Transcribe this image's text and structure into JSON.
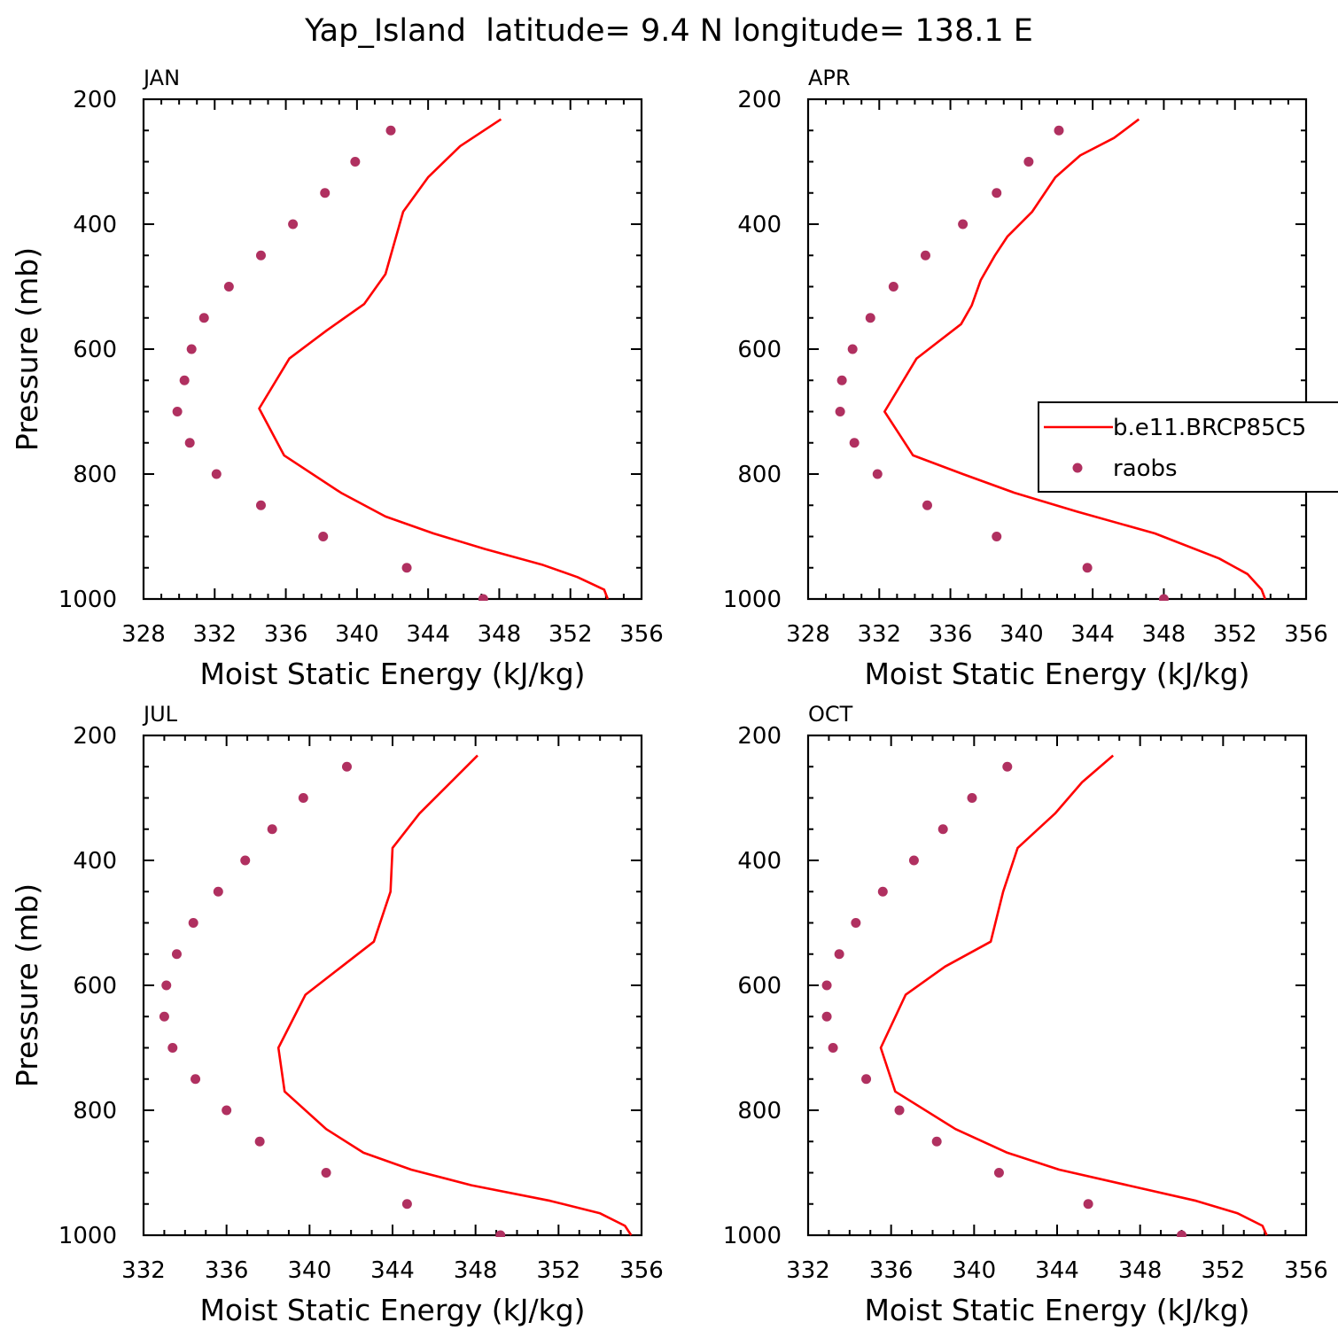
{
  "figure": {
    "title": "Yap_Island  latitude= 9.4 N longitude= 138.1 E"
  },
  "legend": {
    "model_label": "b.e11.BRCP85C5",
    "obs_label": "raobs"
  },
  "colors": {
    "model_line": "#ff0000",
    "obs_marker": "#b03060",
    "axes": "#000000"
  },
  "chart_data": [
    {
      "type": "line",
      "panel_label": "JAN",
      "xlabel": "Moist Static Energy (kJ/kg)",
      "ylabel": "Pressure (mb)",
      "xlim": [
        328,
        356
      ],
      "ylim": [
        200,
        1000
      ],
      "y_inverted": true,
      "xticks": [
        "328",
        "332",
        "336",
        "340",
        "344",
        "348",
        "352",
        "356"
      ],
      "yticks": [
        "200",
        "400",
        "600",
        "800",
        "1000"
      ],
      "series": [
        {
          "name": "b.e11.BRCP85C5",
          "x": [
            348.1,
            345.8,
            344.0,
            342.6,
            342.1,
            341.6,
            340.4,
            338.3,
            336.2,
            334.5,
            335.9,
            339.1,
            341.6,
            344.3,
            347.2,
            350.4,
            352.4,
            353.9,
            354.1
          ],
          "y": [
            232,
            275,
            325,
            380,
            430,
            480,
            528,
            570,
            615,
            695,
            770,
            830,
            868,
            895,
            920,
            945,
            965,
            985,
            1000
          ]
        },
        {
          "name": "raobs",
          "x": [
            341.9,
            339.9,
            338.2,
            336.4,
            334.6,
            332.8,
            331.4,
            330.7,
            330.3,
            329.9,
            330.6,
            332.1,
            334.6,
            338.1,
            342.8,
            347.1
          ],
          "y": [
            250,
            300,
            350,
            400,
            450,
            500,
            550,
            600,
            650,
            700,
            750,
            800,
            850,
            900,
            950,
            1000
          ]
        }
      ]
    },
    {
      "type": "line",
      "panel_label": "APR",
      "xlabel": "Moist Static Energy (kJ/kg)",
      "ylabel": "",
      "xlim": [
        328,
        356
      ],
      "ylim": [
        200,
        1000
      ],
      "y_inverted": true,
      "xticks": [
        "328",
        "332",
        "336",
        "340",
        "344",
        "348",
        "352",
        "356"
      ],
      "yticks": [
        "200",
        "400",
        "600",
        "800",
        "1000"
      ],
      "series": [
        {
          "name": "b.e11.BRCP85C5",
          "x": [
            346.6,
            345.2,
            343.3,
            341.9,
            340.6,
            339.2,
            338.5,
            337.7,
            337.2,
            336.6,
            334.1,
            332.3,
            333.9,
            336.7,
            339.6,
            343.1,
            347.5,
            351.1,
            352.7,
            353.5,
            353.7
          ],
          "y": [
            232,
            262,
            290,
            325,
            380,
            420,
            450,
            490,
            530,
            560,
            615,
            700,
            770,
            800,
            830,
            860,
            895,
            935,
            960,
            985,
            1000
          ]
        },
        {
          "name": "raobs",
          "x": [
            342.1,
            340.4,
            338.6,
            336.7,
            334.6,
            332.8,
            331.5,
            330.5,
            329.9,
            329.8,
            330.6,
            331.9,
            334.7,
            338.6,
            343.7,
            348.0
          ],
          "y": [
            250,
            300,
            350,
            400,
            450,
            500,
            550,
            600,
            650,
            700,
            750,
            800,
            850,
            900,
            950,
            1000
          ]
        }
      ]
    },
    {
      "type": "line",
      "panel_label": "JUL",
      "xlabel": "Moist Static Energy (kJ/kg)",
      "ylabel": "Pressure (mb)",
      "xlim": [
        332,
        356
      ],
      "ylim": [
        200,
        1000
      ],
      "y_inverted": true,
      "xticks": [
        "332",
        "336",
        "340",
        "344",
        "348",
        "352",
        "356"
      ],
      "yticks": [
        "200",
        "400",
        "600",
        "800",
        "1000"
      ],
      "series": [
        {
          "name": "b.e11.BRCP85C5",
          "x": [
            348.1,
            345.3,
            344.0,
            343.9,
            343.1,
            339.8,
            338.5,
            338.8,
            340.8,
            342.6,
            344.9,
            347.8,
            351.6,
            354.0,
            355.2,
            355.5
          ],
          "y": [
            232,
            325,
            380,
            450,
            530,
            615,
            700,
            770,
            830,
            868,
            895,
            920,
            945,
            965,
            985,
            1000
          ]
        },
        {
          "name": "raobs",
          "x": [
            341.8,
            339.7,
            338.2,
            336.9,
            335.6,
            334.4,
            333.6,
            333.1,
            333.0,
            333.4,
            334.5,
            336.0,
            337.6,
            340.8,
            344.7,
            349.2
          ],
          "y": [
            250,
            300,
            350,
            400,
            450,
            500,
            550,
            600,
            650,
            700,
            750,
            800,
            850,
            900,
            950,
            1000
          ]
        }
      ]
    },
    {
      "type": "line",
      "panel_label": "OCT",
      "xlabel": "Moist Static Energy (kJ/kg)",
      "ylabel": "",
      "xlim": [
        332,
        356
      ],
      "ylim": [
        200,
        1000
      ],
      "y_inverted": true,
      "xticks": [
        "332",
        "336",
        "340",
        "344",
        "348",
        "352",
        "356"
      ],
      "yticks": [
        "200",
        "400",
        "600",
        "800",
        "1000"
      ],
      "series": [
        {
          "name": "b.e11.BRCP85C5",
          "x": [
            346.7,
            345.2,
            343.9,
            342.1,
            341.4,
            340.8,
            338.6,
            336.7,
            335.5,
            336.2,
            339.1,
            341.6,
            344.1,
            347.4,
            350.7,
            352.7,
            353.9,
            354.1
          ],
          "y": [
            232,
            275,
            325,
            380,
            450,
            530,
            570,
            615,
            700,
            770,
            830,
            868,
            895,
            920,
            945,
            965,
            985,
            1000
          ]
        },
        {
          "name": "raobs",
          "x": [
            341.6,
            339.9,
            338.5,
            337.1,
            335.6,
            334.3,
            333.5,
            332.9,
            332.9,
            333.2,
            334.8,
            336.4,
            338.2,
            341.2,
            345.5,
            350.0
          ],
          "y": [
            250,
            300,
            350,
            400,
            450,
            500,
            550,
            600,
            650,
            700,
            750,
            800,
            850,
            900,
            950,
            1000
          ]
        }
      ]
    }
  ]
}
